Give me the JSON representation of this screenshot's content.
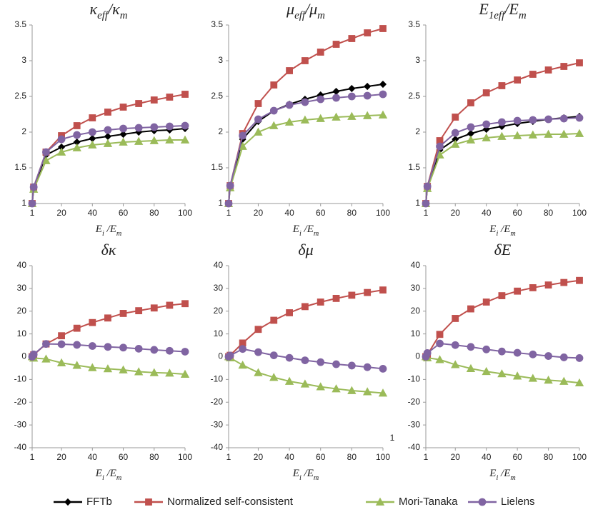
{
  "chart_data": [
    {
      "type": "line",
      "title": [
        "κ",
        "eff",
        "/κ",
        "m"
      ],
      "x_label": [
        "E",
        "i",
        " /E",
        "m"
      ],
      "x": [
        1,
        2,
        10,
        20,
        30,
        40,
        50,
        60,
        70,
        80,
        90,
        100
      ],
      "xlim": [
        1,
        100
      ],
      "xticks": [
        1,
        20,
        40,
        60,
        80,
        100
      ],
      "ylim": [
        1,
        3.5
      ],
      "yticks": [
        1,
        1.5,
        2,
        2.5,
        3,
        3.5
      ],
      "series": [
        {
          "name": "FFTb",
          "color": "#000000",
          "marker": "diamond",
          "values": [
            1,
            1.22,
            1.68,
            1.79,
            1.86,
            1.91,
            1.94,
            1.97,
            2.0,
            2.02,
            2.03,
            2.05
          ]
        },
        {
          "name": "Normalized self-consistent",
          "color": "#c0504d",
          "marker": "square",
          "values": [
            1,
            1.23,
            1.72,
            1.95,
            2.09,
            2.2,
            2.28,
            2.35,
            2.4,
            2.45,
            2.49,
            2.53
          ]
        },
        {
          "name": "Mori-Tanaka",
          "color": "#9bbb59",
          "marker": "triangle",
          "values": [
            1,
            1.2,
            1.6,
            1.72,
            1.78,
            1.82,
            1.84,
            1.86,
            1.87,
            1.88,
            1.89,
            1.89
          ]
        },
        {
          "name": "Lielens",
          "color": "#8064a2",
          "marker": "circle",
          "values": [
            1,
            1.23,
            1.72,
            1.9,
            1.96,
            2.0,
            2.03,
            2.05,
            2.06,
            2.07,
            2.08,
            2.09
          ]
        }
      ]
    },
    {
      "type": "line",
      "title": [
        "μ",
        "eff",
        "/μ",
        "m"
      ],
      "x_label": [
        "E",
        "i",
        " /E",
        "m"
      ],
      "x": [
        1,
        2,
        10,
        20,
        30,
        40,
        50,
        60,
        70,
        80,
        90,
        100
      ],
      "xlim": [
        1,
        100
      ],
      "xticks": [
        1,
        20,
        40,
        60,
        80,
        100
      ],
      "ylim": [
        1,
        3.5
      ],
      "yticks": [
        1,
        1.5,
        2,
        2.5,
        3,
        3.5
      ],
      "series": [
        {
          "name": "FFTb",
          "color": "#000000",
          "marker": "diamond",
          "values": [
            1,
            1.25,
            1.9,
            2.15,
            2.3,
            2.39,
            2.46,
            2.52,
            2.57,
            2.61,
            2.64,
            2.67
          ]
        },
        {
          "name": "Normalized self-consistent",
          "color": "#c0504d",
          "marker": "square",
          "values": [
            1,
            1.25,
            1.98,
            2.4,
            2.66,
            2.86,
            3.0,
            3.12,
            3.23,
            3.31,
            3.39,
            3.45
          ]
        },
        {
          "name": "Mori-Tanaka",
          "color": "#9bbb59",
          "marker": "triangle",
          "values": [
            1,
            1.22,
            1.8,
            2.0,
            2.09,
            2.14,
            2.17,
            2.19,
            2.21,
            2.22,
            2.23,
            2.24
          ]
        },
        {
          "name": "Lielens",
          "color": "#8064a2",
          "marker": "circle",
          "values": [
            1,
            1.25,
            1.95,
            2.18,
            2.3,
            2.38,
            2.42,
            2.46,
            2.48,
            2.5,
            2.51,
            2.53
          ]
        }
      ]
    },
    {
      "type": "line",
      "title": [
        "E",
        "1eff",
        "/E",
        "m"
      ],
      "x_label": [
        "E",
        "i",
        " /E",
        "m"
      ],
      "x": [
        1,
        2,
        10,
        20,
        30,
        40,
        50,
        60,
        70,
        80,
        90,
        100
      ],
      "xlim": [
        1,
        100
      ],
      "xticks": [
        1,
        20,
        40,
        60,
        80,
        100
      ],
      "ylim": [
        1,
        3.5
      ],
      "yticks": [
        1,
        1.5,
        2,
        2.5,
        3,
        3.5
      ],
      "series": [
        {
          "name": "FFTb",
          "color": "#000000",
          "marker": "diamond",
          "values": [
            1,
            1.23,
            1.75,
            1.9,
            1.98,
            2.04,
            2.08,
            2.12,
            2.15,
            2.18,
            2.2,
            2.22
          ]
        },
        {
          "name": "Normalized self-consistent",
          "color": "#c0504d",
          "marker": "square",
          "values": [
            1,
            1.24,
            1.88,
            2.21,
            2.41,
            2.55,
            2.65,
            2.73,
            2.81,
            2.87,
            2.92,
            2.97
          ]
        },
        {
          "name": "Mori-Tanaka",
          "color": "#9bbb59",
          "marker": "triangle",
          "values": [
            1,
            1.21,
            1.68,
            1.83,
            1.89,
            1.92,
            1.94,
            1.95,
            1.96,
            1.97,
            1.97,
            1.98
          ]
        },
        {
          "name": "Lielens",
          "color": "#8064a2",
          "marker": "circle",
          "values": [
            1,
            1.24,
            1.8,
            1.99,
            2.07,
            2.11,
            2.14,
            2.16,
            2.17,
            2.18,
            2.19,
            2.2
          ]
        }
      ]
    },
    {
      "type": "line",
      "title": [
        "δκ"
      ],
      "x_label": [
        "E",
        "i",
        " /E",
        "m"
      ],
      "x": [
        1,
        2,
        10,
        20,
        30,
        40,
        50,
        60,
        70,
        80,
        90,
        100
      ],
      "xlim": [
        1,
        100
      ],
      "xticks": [
        1,
        20,
        40,
        60,
        80,
        100
      ],
      "ylim": [
        -40,
        40
      ],
      "yticks": [
        -40,
        -30,
        -20,
        -10,
        0,
        10,
        20,
        30,
        40
      ],
      "series": [
        {
          "name": "Normalized self-consistent",
          "color": "#c0504d",
          "marker": "square",
          "values": [
            0,
            0.8,
            5.6,
            9.2,
            12.5,
            15,
            17,
            19,
            20.2,
            21.4,
            22.6,
            23.3
          ]
        },
        {
          "name": "Mori-Tanaka",
          "color": "#9bbb59",
          "marker": "triangle",
          "values": [
            0,
            -0.6,
            -1,
            -2.7,
            -3.8,
            -4.8,
            -5.3,
            -5.8,
            -6.6,
            -7,
            -7.2,
            -7.7
          ]
        },
        {
          "name": "Lielens",
          "color": "#8064a2",
          "marker": "circle",
          "values": [
            0,
            1,
            5.6,
            5.5,
            5.2,
            4.7,
            4.3,
            4,
            3.5,
            3,
            2.6,
            2.2
          ]
        }
      ]
    },
    {
      "type": "line",
      "title": [
        "δμ"
      ],
      "x_label": [
        "E",
        "i",
        " /E",
        "m"
      ],
      "x": [
        1,
        2,
        10,
        20,
        30,
        40,
        50,
        60,
        70,
        80,
        90,
        100
      ],
      "xlim": [
        1,
        100
      ],
      "xticks": [
        1,
        20,
        40,
        60,
        80,
        100
      ],
      "ylim": [
        -40,
        40
      ],
      "yticks": [
        -40,
        -30,
        -20,
        -10,
        0,
        10,
        20,
        30,
        40
      ],
      "series": [
        {
          "name": "Normalized self-consistent",
          "color": "#c0504d",
          "marker": "square",
          "values": [
            0,
            0.6,
            6,
            12,
            16,
            19.3,
            22,
            24,
            25.6,
            27,
            28.2,
            29.3
          ]
        },
        {
          "name": "Mori-Tanaka",
          "color": "#9bbb59",
          "marker": "triangle",
          "values": [
            0,
            -0.5,
            -3.7,
            -7,
            -9.1,
            -10.8,
            -12,
            -13.2,
            -14.1,
            -14.9,
            -15.4,
            -16
          ]
        },
        {
          "name": "Lielens",
          "color": "#8064a2",
          "marker": "circle",
          "values": [
            0,
            0.5,
            3.4,
            2,
            0.6,
            -0.5,
            -1.6,
            -2.4,
            -3.3,
            -3.9,
            -4.6,
            -5.3
          ]
        }
      ]
    },
    {
      "type": "line",
      "title": [
        "δE"
      ],
      "x_label": [
        "E",
        "i",
        " /E",
        "m"
      ],
      "x": [
        1,
        2,
        10,
        20,
        30,
        40,
        50,
        60,
        70,
        80,
        90,
        100
      ],
      "xlim": [
        1,
        100
      ],
      "xticks": [
        1,
        20,
        40,
        60,
        80,
        100
      ],
      "ylim": [
        -40,
        40
      ],
      "yticks": [
        -40,
        -30,
        -20,
        -10,
        0,
        10,
        20,
        30,
        40
      ],
      "series": [
        {
          "name": "Normalized self-consistent",
          "color": "#c0504d",
          "marker": "square",
          "values": [
            0,
            0.8,
            9.8,
            16.8,
            21,
            24,
            26.8,
            28.8,
            30.3,
            31.5,
            32.6,
            33.5
          ]
        },
        {
          "name": "Mori-Tanaka",
          "color": "#9bbb59",
          "marker": "triangle",
          "values": [
            0,
            -0.5,
            -1.3,
            -3.5,
            -5.2,
            -6.5,
            -7.5,
            -8.5,
            -9.5,
            -10.3,
            -10.8,
            -11.5
          ]
        },
        {
          "name": "Lielens",
          "color": "#8064a2",
          "marker": "circle",
          "values": [
            0,
            1.6,
            5.8,
            5.1,
            4.3,
            3.2,
            2.3,
            1.7,
            1.0,
            0.3,
            -0.3,
            -0.6
          ]
        }
      ]
    }
  ],
  "stray_text": "1"
}
